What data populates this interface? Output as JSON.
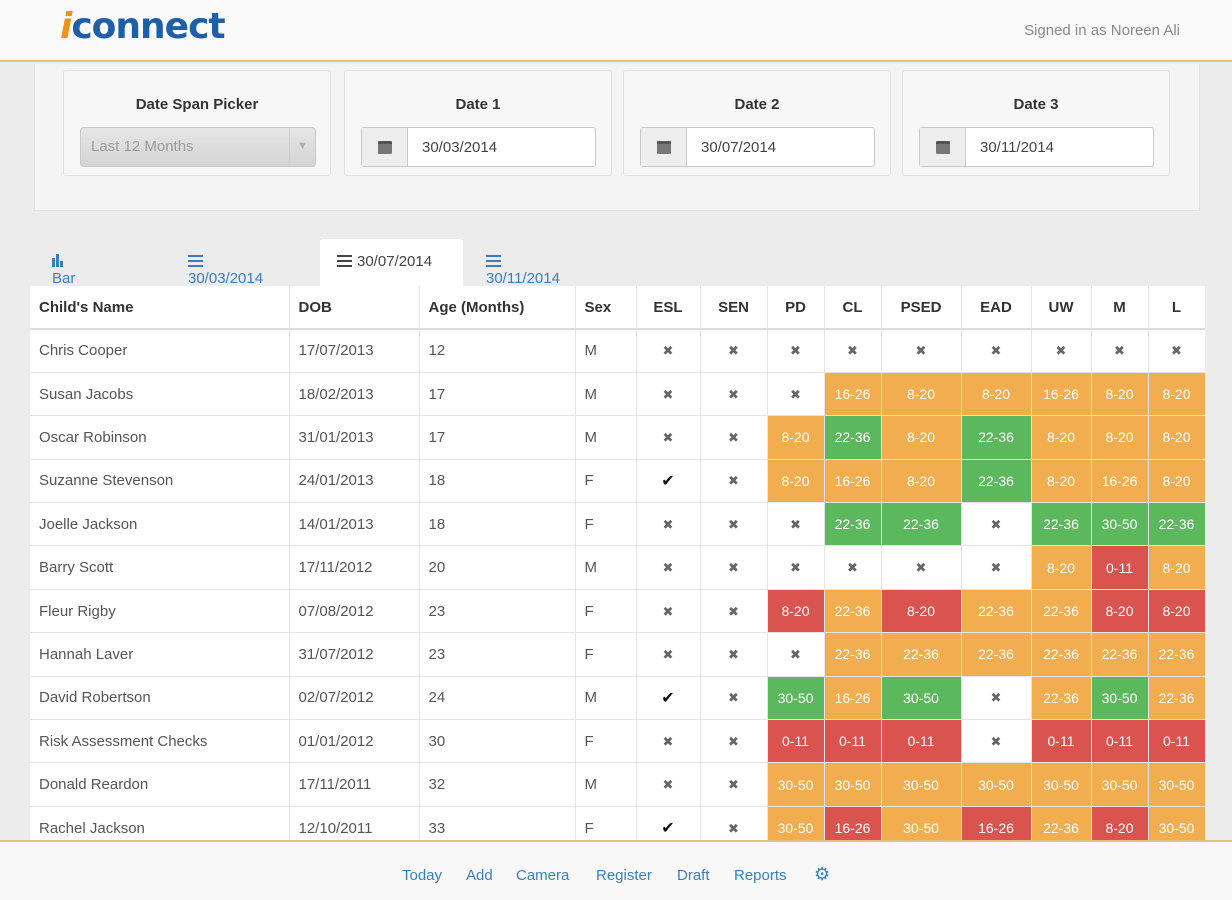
{
  "header": {
    "logo_i": "i",
    "logo_rest": "connect",
    "signed_in": "Signed in as Noreen Ali"
  },
  "filters": {
    "span": {
      "label": "Date Span Picker",
      "value": "Last 12 Months"
    },
    "date1": {
      "label": "Date 1",
      "value": "30/03/2014"
    },
    "date2": {
      "label": "Date 2",
      "value": "30/07/2014"
    },
    "date3": {
      "label": "Date 3",
      "value": "30/11/2014"
    }
  },
  "tabs": [
    "Bar Chart",
    "30/03/2014",
    "30/07/2014",
    "30/11/2014"
  ],
  "table": {
    "headers": [
      "Child's Name",
      "DOB",
      "Age (Months)",
      "Sex",
      "ESL",
      "SEN",
      "PD",
      "CL",
      "PSED",
      "EAD",
      "UW",
      "M",
      "L"
    ],
    "rows": [
      [
        "Chris Cooper",
        "17/07/2013",
        "12",
        "M",
        "x",
        "x",
        "x",
        "x",
        "x",
        "x",
        "x",
        "x",
        "x"
      ],
      [
        "Susan Jacobs",
        "18/02/2013",
        "17",
        "M",
        "x",
        "x",
        "x",
        "o:16-26",
        "o:8-20",
        "o:8-20",
        "o:16-26",
        "o:8-20",
        "o:8-20"
      ],
      [
        "Oscar Robinson",
        "31/01/2013",
        "17",
        "M",
        "x",
        "x",
        "o:8-20",
        "g:22-36",
        "o:8-20",
        "g:22-36",
        "o:8-20",
        "o:8-20",
        "o:8-20"
      ],
      [
        "Suzanne Stevenson",
        "24/01/2013",
        "18",
        "F",
        "t",
        "x",
        "o:8-20",
        "o:16-26",
        "o:8-20",
        "g:22-36",
        "o:8-20",
        "o:16-26",
        "o:8-20"
      ],
      [
        "Joelle Jackson",
        "14/01/2013",
        "18",
        "F",
        "x",
        "x",
        "x",
        "g:22-36",
        "g:22-36",
        "x",
        "g:22-36",
        "g:30-50",
        "g:22-36"
      ],
      [
        "Barry Scott",
        "17/11/2012",
        "20",
        "M",
        "x",
        "x",
        "x",
        "x",
        "x",
        "x",
        "o:8-20",
        "r:0-11",
        "o:8-20"
      ],
      [
        "Fleur Rigby",
        "07/08/2012",
        "23",
        "F",
        "x",
        "x",
        "r:8-20",
        "o:22-36",
        "r:8-20",
        "o:22-36",
        "o:22-36",
        "r:8-20",
        "r:8-20"
      ],
      [
        "Hannah Laver",
        "31/07/2012",
        "23",
        "F",
        "x",
        "x",
        "x",
        "o:22-36",
        "o:22-36",
        "o:22-36",
        "o:22-36",
        "o:22-36",
        "o:22-36"
      ],
      [
        "David Robertson",
        "02/07/2012",
        "24",
        "M",
        "t",
        "x",
        "g:30-50",
        "o:16-26",
        "g:30-50",
        "x",
        "o:22-36",
        "g:30-50",
        "o:22-36"
      ],
      [
        "Risk Assessment Checks",
        "01/01/2012",
        "30",
        "F",
        "x",
        "x",
        "r:0-11",
        "r:0-11",
        "r:0-11",
        "x",
        "r:0-11",
        "r:0-11",
        "r:0-11"
      ],
      [
        "Donald Reardon",
        "17/11/2011",
        "32",
        "M",
        "x",
        "x",
        "o:30-50",
        "o:30-50",
        "o:30-50",
        "o:30-50",
        "o:30-50",
        "o:30-50",
        "o:30-50"
      ],
      [
        "Rachel Jackson",
        "12/10/2011",
        "33",
        "F",
        "t",
        "x",
        "o:30-50",
        "r:16-26",
        "o:30-50",
        "r:16-26",
        "o:22-36",
        "r:8-20",
        "o:30-50"
      ]
    ]
  },
  "footer": {
    "nav": [
      "Today",
      "Add",
      "Camera",
      "Register",
      "Draft",
      "Reports"
    ],
    "settings_icon": "gear-icon"
  },
  "colors": {
    "orange": "#f1ad4e",
    "green": "#5bb85d",
    "red": "#d9534f",
    "link": "#3a7ec2"
  }
}
